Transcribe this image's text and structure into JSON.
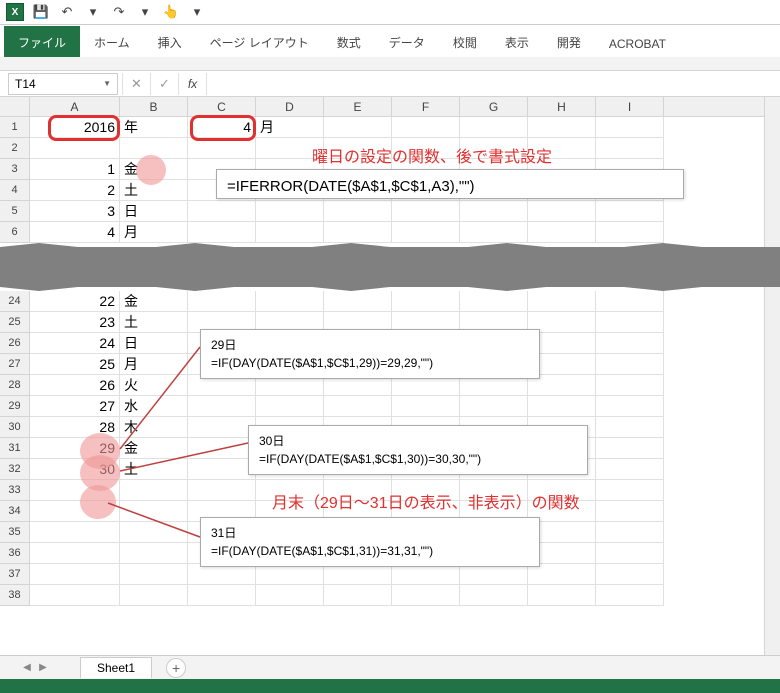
{
  "titlebar": {},
  "tabs": {
    "file": "ファイル",
    "home": "ホーム",
    "insert": "挿入",
    "pagelayout": "ページ レイアウト",
    "formulas": "数式",
    "data": "データ",
    "review": "校閲",
    "view": "表示",
    "developer": "開発",
    "acrobat": "ACROBAT"
  },
  "namebox": "T14",
  "fx_label": "fx",
  "columns": [
    "A",
    "B",
    "C",
    "D",
    "E",
    "F",
    "G",
    "H",
    "I"
  ],
  "top_rows": [
    {
      "n": "1",
      "A": "2016",
      "B": "年",
      "C": "4",
      "D": "月"
    },
    {
      "n": "2"
    },
    {
      "n": "3",
      "A": "1",
      "B": "金"
    },
    {
      "n": "4",
      "A": "2",
      "B": "土"
    },
    {
      "n": "5",
      "A": "3",
      "B": "日"
    },
    {
      "n": "6",
      "A": "4",
      "B": "月"
    }
  ],
  "bottom_rows": [
    {
      "n": "24",
      "A": "22",
      "B": "金"
    },
    {
      "n": "25",
      "A": "23",
      "B": "土"
    },
    {
      "n": "26",
      "A": "24",
      "B": "日"
    },
    {
      "n": "27",
      "A": "25",
      "B": "月"
    },
    {
      "n": "28",
      "A": "26",
      "B": "火"
    },
    {
      "n": "29",
      "A": "27",
      "B": "水"
    },
    {
      "n": "30",
      "A": "28",
      "B": "木"
    },
    {
      "n": "31",
      "A": "29",
      "B": "金"
    },
    {
      "n": "32",
      "A": "30",
      "B": "土"
    },
    {
      "n": "33"
    },
    {
      "n": "34"
    },
    {
      "n": "35"
    },
    {
      "n": "36"
    },
    {
      "n": "37"
    },
    {
      "n": "38"
    }
  ],
  "annot": {
    "weekday": "曜日の設定の関数、後で書式設定",
    "formula_top": "=IFERROR(DATE($A$1,$C$1,A3),\"\")",
    "day29_title": "29日",
    "day29_formula": "=IF(DAY(DATE($A$1,$C$1,29))=29,29,\"\")",
    "day30_title": "30日",
    "day30_formula": "=IF(DAY(DATE($A$1,$C$1,30))=30,30,\"\")",
    "day31_title": "31日",
    "day31_formula": "=IF(DAY(DATE($A$1,$C$1,31))=31,31,\"\")",
    "monthend": "月末（29日～31日の表示、非表示）の関数"
  },
  "sheet_tab": "Sheet1",
  "colors": {
    "accent": "#217346",
    "red": "#e03030",
    "pink": "rgba(240,150,150,0.6)",
    "grid": "#e0e0e0"
  }
}
